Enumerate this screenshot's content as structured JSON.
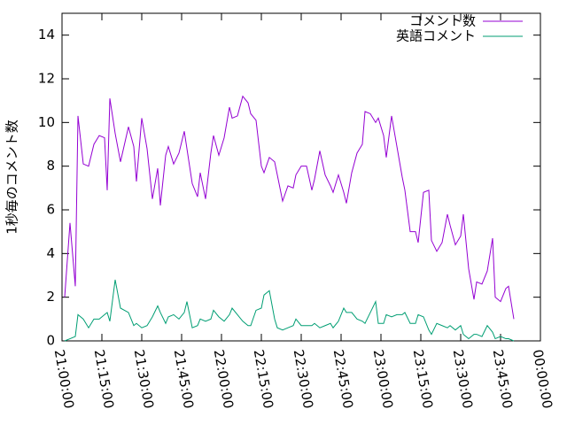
{
  "chart_data": {
    "type": "line",
    "y_label": "1秒毎のコメント数",
    "x": [
      "21:01:00",
      "21:03:00",
      "21:05:00",
      "21:06:00",
      "21:08:00",
      "21:10:00",
      "21:12:00",
      "21:14:00",
      "21:16:00",
      "21:17:00",
      "21:18:00",
      "21:20:00",
      "21:22:00",
      "21:25:00",
      "21:27:00",
      "21:28:00",
      "21:30:00",
      "21:32:00",
      "21:34:00",
      "21:36:00",
      "21:37:00",
      "21:39:00",
      "21:40:00",
      "21:42:00",
      "21:44:00",
      "21:46:00",
      "21:47:00",
      "21:49:00",
      "21:51:00",
      "21:52:00",
      "21:54:00",
      "21:56:00",
      "21:57:00",
      "21:59:00",
      "22:01:00",
      "22:03:00",
      "22:04:00",
      "22:06:00",
      "22:08:00",
      "22:10:00",
      "22:11:00",
      "22:13:00",
      "22:15:00",
      "22:16:00",
      "22:18:00",
      "22:20:00",
      "22:21:00",
      "22:23:00",
      "22:25:00",
      "22:27:00",
      "22:28:00",
      "22:30:00",
      "22:32:00",
      "22:34:00",
      "22:35:00",
      "22:37:00",
      "22:39:00",
      "22:41:00",
      "22:42:00",
      "22:44:00",
      "22:46:00",
      "22:47:00",
      "22:49:00",
      "22:51:00",
      "22:53:00",
      "22:54:00",
      "22:56:00",
      "22:58:00",
      "22:59:00",
      "23:01:00",
      "23:02:00",
      "23:04:00",
      "23:06:00",
      "23:08:00",
      "23:09:00",
      "23:11:00",
      "23:13:00",
      "23:14:00",
      "23:16:00",
      "23:18:00",
      "23:19:00",
      "23:21:00",
      "23:23:00",
      "23:25:00",
      "23:26:00",
      "23:28:00",
      "23:30:00",
      "23:31:00",
      "23:33:00",
      "23:35:00",
      "23:36:00",
      "23:38:00",
      "23:40:00",
      "23:42:00",
      "23:43:00",
      "23:45:00",
      "23:47:00",
      "23:48:00",
      "23:50:00"
    ],
    "series": [
      {
        "name": "コメント数",
        "color": "#9400d3",
        "values": [
          2.0,
          5.4,
          2.5,
          10.3,
          8.1,
          8.0,
          9.0,
          9.4,
          9.3,
          6.9,
          11.1,
          9.5,
          8.2,
          9.8,
          8.9,
          7.3,
          10.2,
          8.8,
          6.5,
          7.9,
          6.2,
          8.5,
          8.9,
          8.1,
          8.6,
          9.6,
          8.8,
          7.2,
          6.6,
          7.7,
          6.5,
          8.6,
          9.4,
          8.5,
          9.3,
          10.7,
          10.2,
          10.3,
          11.2,
          10.9,
          10.4,
          10.1,
          8.0,
          7.7,
          8.4,
          8.2,
          7.6,
          6.4,
          7.1,
          7.0,
          7.6,
          8.0,
          8.0,
          6.9,
          7.4,
          8.7,
          7.6,
          7.1,
          6.8,
          7.6,
          6.8,
          6.3,
          7.7,
          8.6,
          9.0,
          10.5,
          10.4,
          10.0,
          10.2,
          9.4,
          8.4,
          10.3,
          8.9,
          7.5,
          6.9,
          5.0,
          5.0,
          4.5,
          6.8,
          6.9,
          4.6,
          4.1,
          4.5,
          5.8,
          5.3,
          4.4,
          4.8,
          5.8,
          3.3,
          1.9,
          2.7,
          2.6,
          3.2,
          4.7,
          2.0,
          1.8,
          2.4,
          2.5,
          1.0
        ]
      },
      {
        "name": "英語コメント",
        "color": "#009e73",
        "values": [
          0.0,
          0.1,
          0.2,
          1.2,
          1.0,
          0.6,
          1.0,
          1.0,
          1.2,
          1.3,
          0.9,
          2.8,
          1.5,
          1.3,
          0.7,
          0.8,
          0.6,
          0.7,
          1.1,
          1.6,
          1.3,
          0.8,
          1.1,
          1.2,
          1.0,
          1.3,
          1.8,
          0.6,
          0.7,
          1.0,
          0.9,
          1.0,
          1.4,
          1.1,
          0.9,
          1.2,
          1.5,
          1.2,
          0.9,
          0.7,
          0.7,
          1.4,
          1.5,
          2.1,
          2.3,
          1.0,
          0.6,
          0.5,
          0.6,
          0.7,
          1.0,
          0.7,
          0.7,
          0.7,
          0.8,
          0.6,
          0.7,
          0.8,
          0.6,
          0.9,
          1.5,
          1.3,
          1.3,
          1.0,
          0.9,
          0.8,
          1.3,
          1.8,
          0.8,
          0.8,
          1.2,
          1.1,
          1.2,
          1.2,
          1.3,
          0.8,
          0.8,
          1.2,
          1.1,
          0.5,
          0.3,
          0.8,
          0.7,
          0.6,
          0.7,
          0.5,
          0.7,
          0.3,
          0.1,
          0.3,
          0.3,
          0.2,
          0.7,
          0.4,
          0.1,
          0.2,
          0.1,
          0.1,
          0.0
        ]
      }
    ],
    "xlim": [
      "21:00:00",
      "00:00:00"
    ],
    "xticks": [
      "21:00:00",
      "21:15:00",
      "21:30:00",
      "21:45:00",
      "22:00:00",
      "22:15:00",
      "22:30:00",
      "22:45:00",
      "23:00:00",
      "23:15:00",
      "23:30:00",
      "23:45:00",
      "00:00:00"
    ],
    "ylim": [
      0,
      15
    ],
    "yticks": [
      0,
      2,
      4,
      6,
      8,
      10,
      12,
      14
    ],
    "legend": "top-right"
  }
}
